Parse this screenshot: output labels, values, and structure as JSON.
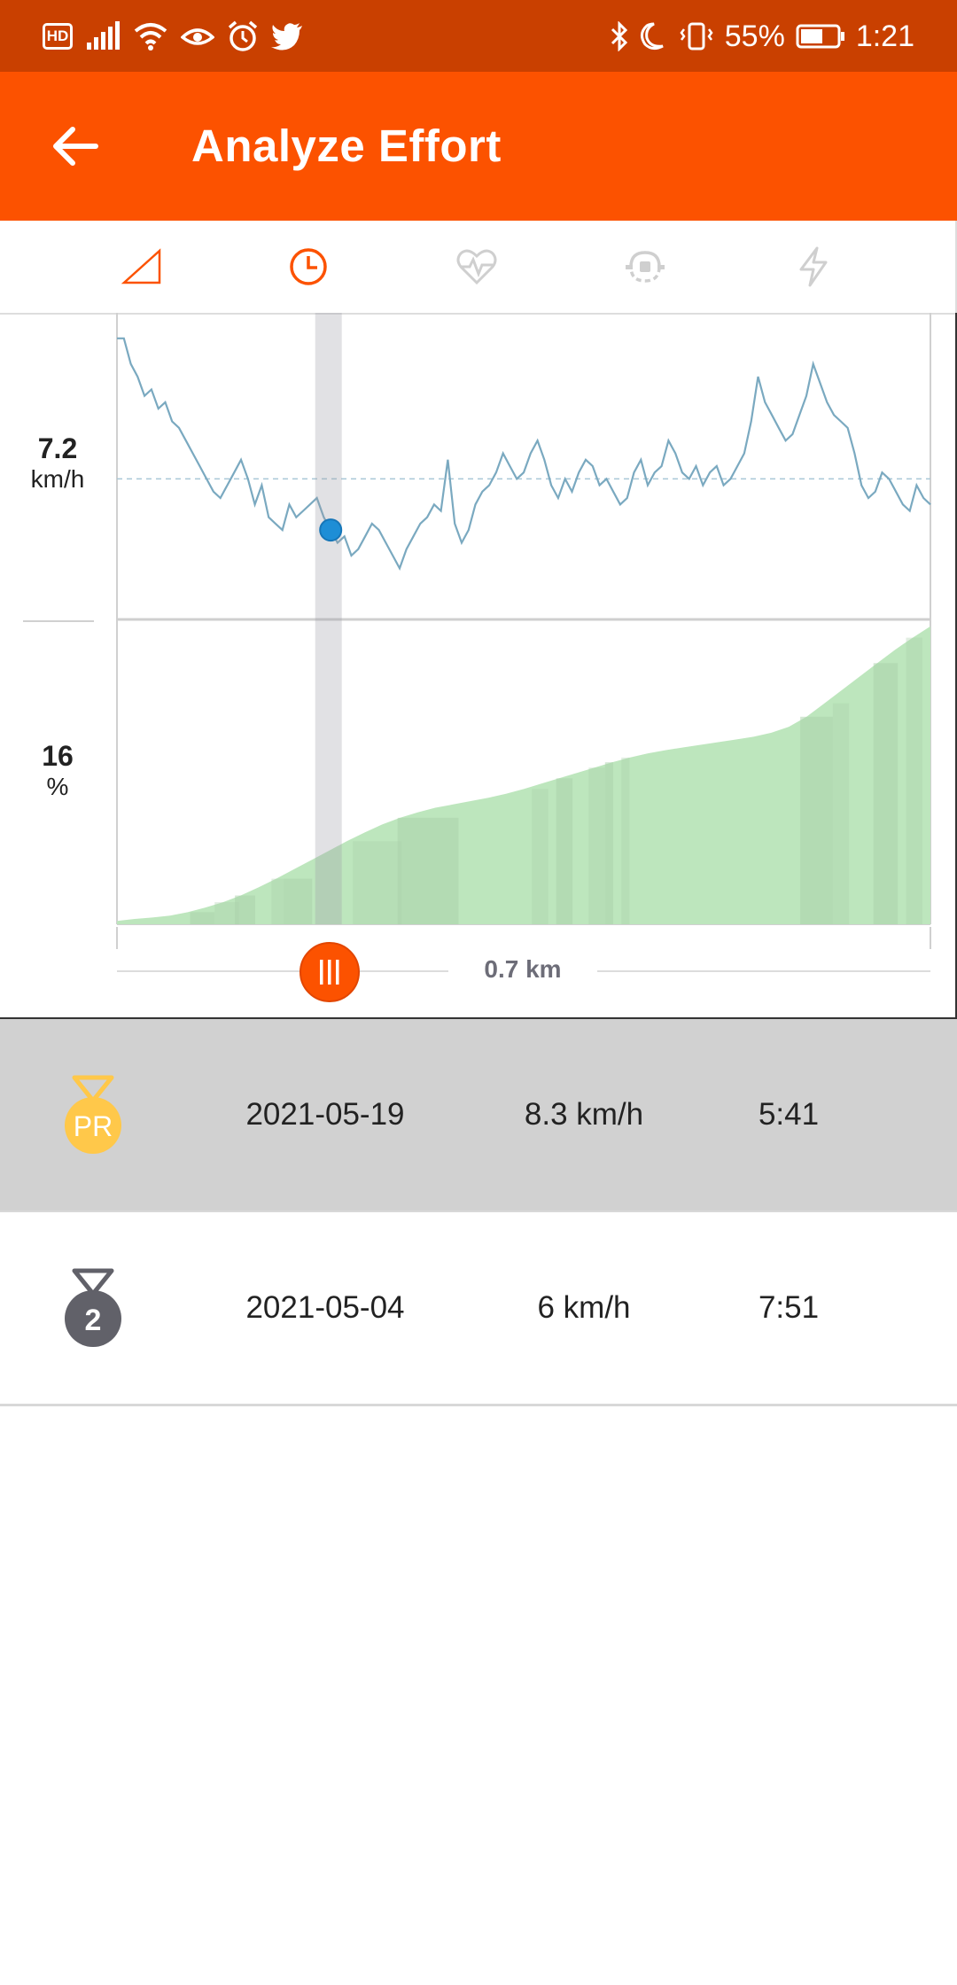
{
  "status_bar": {
    "hd": "HD",
    "battery_percent": "55%",
    "time": "1:21",
    "icons": [
      "signal-icon",
      "wifi-icon",
      "eye-icon",
      "alarm-icon",
      "twitter-icon",
      "bluetooth-icon",
      "moon-icon",
      "vibrate-icon",
      "battery-icon"
    ]
  },
  "app_bar": {
    "title": "Analyze Effort",
    "back_icon": "arrow-left-icon"
  },
  "tabs": [
    {
      "name": "elevation",
      "icon": "elevation-triangle-icon",
      "active": false
    },
    {
      "name": "pace",
      "icon": "clock-icon",
      "active": true
    },
    {
      "name": "heart-rate",
      "icon": "heart-rate-icon",
      "active": false
    },
    {
      "name": "cadence",
      "icon": "cadence-icon",
      "active": false
    },
    {
      "name": "power",
      "icon": "lightning-icon",
      "active": false
    }
  ],
  "chart_data": {
    "type": "line",
    "panels": [
      {
        "metric": "speed",
        "type": "line",
        "readout_value": "7.2",
        "readout_unit": "km/h",
        "series_color": "#7aa9c0",
        "values": [
          9.4,
          9.4,
          9.0,
          8.8,
          8.5,
          8.6,
          8.3,
          8.4,
          8.1,
          8.0,
          7.8,
          7.6,
          7.4,
          7.2,
          7.0,
          6.9,
          7.1,
          7.3,
          7.5,
          7.2,
          6.8,
          7.1,
          6.6,
          6.5,
          6.4,
          6.8,
          6.6,
          6.7,
          6.8,
          6.9,
          6.6,
          6.4,
          6.2,
          6.3,
          6.0,
          6.1,
          6.3,
          6.5,
          6.4,
          6.2,
          6.0,
          5.8,
          6.1,
          6.3,
          6.5,
          6.6,
          6.8,
          6.7,
          7.5,
          6.5,
          6.2,
          6.4,
          6.8,
          7.0,
          7.1,
          7.3,
          7.6,
          7.4,
          7.2,
          7.3,
          7.6,
          7.8,
          7.5,
          7.1,
          6.9,
          7.2,
          7.0,
          7.3,
          7.5,
          7.4,
          7.1,
          7.2,
          7.0,
          6.8,
          6.9,
          7.3,
          7.5,
          7.1,
          7.3,
          7.4,
          7.8,
          7.6,
          7.3,
          7.2,
          7.4,
          7.1,
          7.3,
          7.4,
          7.1,
          7.2,
          7.4,
          7.6,
          8.1,
          8.8,
          8.4,
          8.2,
          8.0,
          7.8,
          7.9,
          8.2,
          8.5,
          9.0,
          8.7,
          8.4,
          8.2,
          8.1,
          8.0,
          7.6,
          7.1,
          6.9,
          7.0,
          7.3,
          7.2,
          7.0,
          6.8,
          6.7,
          7.1,
          6.9,
          6.8
        ],
        "reference_line": 7.2
      },
      {
        "metric": "grade",
        "type": "area",
        "readout_value": "16",
        "readout_unit": "%",
        "series_color": "#bde6bd",
        "values": [
          0.5,
          0.8,
          1.0,
          1.3,
          1.8,
          2.5,
          3.3,
          4.3,
          5.5,
          6.8,
          8.2,
          9.6,
          11.0,
          12.4,
          13.7,
          14.9,
          15.9,
          16.7,
          17.4,
          17.9,
          18.4,
          18.9,
          19.5,
          20.2,
          21.0,
          21.8,
          22.6,
          23.4,
          24.2,
          24.9,
          25.5,
          26.0,
          26.4,
          26.8,
          27.2,
          27.6,
          28.0,
          28.6,
          29.5,
          31.0,
          33.0,
          35.0,
          37.0,
          39.0,
          41.0,
          42.8,
          44.5
        ],
        "ymax": 45
      }
    ],
    "cursor_fraction": 0.26
  },
  "slider": {
    "label": "0.7 km",
    "icon": "slider-grip-icon"
  },
  "efforts": [
    {
      "rank": "PR",
      "medal_icon": "pr-medal-icon",
      "medal_color": "#ffc84a",
      "date": "2021-05-19",
      "speed": "8.3 km/h",
      "time": "5:41",
      "selected": true
    },
    {
      "rank": "2",
      "medal_icon": "silver-medal-icon",
      "medal_color": "#616169",
      "date": "2021-05-04",
      "speed": "6 km/h",
      "time": "7:51",
      "selected": false
    }
  ]
}
